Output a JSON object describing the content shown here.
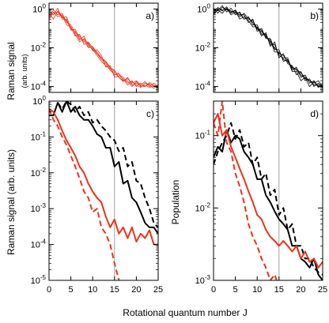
{
  "figure": {
    "xlabel": "Rotational quantum number J",
    "ylabel_top": "Raman signal",
    "ylabel_top_sub": "(arb. units)",
    "ylabel_c": "Raman signal (arb. units)",
    "ylabel_d": "Population"
  },
  "chart_data": [
    {
      "panel": "a)",
      "type": "line",
      "xlim": [
        0,
        25
      ],
      "ylim": [
        5e-05,
        2
      ],
      "yscale": "log",
      "xticks": [],
      "yticks": [
        {
          "v": 1,
          "label": "10^0"
        },
        {
          "v": 0.01,
          "label": "10^-2"
        },
        {
          "v": 0.0001,
          "label": "10^-4"
        }
      ],
      "vline": 15,
      "color": "#e8341c",
      "series": [
        {
          "x": [
            0,
            1,
            2,
            3,
            4,
            5,
            6,
            7,
            8,
            9,
            10,
            11,
            12,
            13,
            14,
            15,
            16,
            17,
            18,
            19,
            20,
            21,
            22,
            23,
            24,
            25
          ],
          "values": [
            0.6,
            0.3,
            0.8,
            0.4,
            0.25,
            0.1,
            0.05,
            0.02,
            0.03,
            0.015,
            0.008,
            0.004,
            0.002,
            0.0012,
            0.0008,
            0.0005,
            0.0003,
            0.0002,
            0.00025,
            0.00015,
            0.0002,
            0.00012,
            0.00018,
            0.0001,
            0.00015,
            0.0001
          ]
        },
        {
          "x": [
            0,
            1,
            2,
            3,
            4,
            5,
            6,
            7,
            8,
            9,
            10,
            11,
            12,
            13,
            14,
            15,
            16,
            17,
            18,
            19,
            20,
            21,
            22,
            23,
            24,
            25
          ],
          "values": [
            0.4,
            0.9,
            0.5,
            0.6,
            0.2,
            0.15,
            0.06,
            0.04,
            0.02,
            0.02,
            0.01,
            0.006,
            0.003,
            0.002,
            0.001,
            0.0006,
            0.0004,
            0.0003,
            0.00015,
            0.0002,
            0.0001,
            0.00015,
            0.0001,
            0.00014,
            0.0001,
            0.00012
          ]
        },
        {
          "x": [
            0,
            1,
            2,
            3,
            4,
            5,
            6,
            7,
            8,
            9,
            10,
            11,
            12,
            13,
            14,
            15,
            16,
            17,
            18,
            19,
            20,
            21,
            22,
            23,
            24,
            25
          ],
          "values": [
            0.8,
            0.5,
            1.1,
            0.3,
            0.3,
            0.08,
            0.09,
            0.03,
            0.025,
            0.01,
            0.012,
            0.005,
            0.0025,
            0.0015,
            0.0007,
            0.0004,
            0.0005,
            0.0002,
            0.0002,
            0.0001,
            0.00018,
            0.0001,
            0.00012,
            9e-05,
            0.00011,
            9e-05
          ]
        },
        {
          "x": [
            0,
            1,
            2,
            3,
            4,
            5,
            6,
            7,
            8,
            9,
            10,
            11,
            12,
            13,
            14,
            15,
            16,
            17,
            18,
            19,
            20,
            21,
            22,
            23,
            24,
            25
          ],
          "values": [
            0.3,
            0.7,
            0.4,
            0.5,
            0.15,
            0.12,
            0.04,
            0.05,
            0.015,
            0.018,
            0.007,
            0.008,
            0.004,
            0.001,
            0.0012,
            0.0003,
            0.00035,
            0.00025,
            0.00012,
            0.00018,
            0.00012,
            9e-05,
            0.00015,
            0.00012,
            8e-05,
            0.00013
          ]
        },
        {
          "x": [
            0,
            1,
            2,
            3,
            4,
            5,
            6,
            7,
            8,
            9,
            10,
            11,
            12,
            13,
            14,
            15,
            16,
            17,
            18,
            19,
            20,
            21,
            22,
            23,
            24,
            25
          ],
          "values": [
            0.5,
            0.6,
            0.7,
            0.35,
            0.4,
            0.1,
            0.07,
            0.025,
            0.04,
            0.012,
            0.009,
            0.005,
            0.003,
            0.0018,
            0.0009,
            0.0007,
            0.0003,
            0.00018,
            0.0003,
            0.00012,
            0.00015,
            0.00011,
            0.0001,
            0.00016,
            0.00012,
            0.0001
          ]
        }
      ]
    },
    {
      "panel": "b)",
      "type": "line",
      "xlim": [
        0,
        25
      ],
      "ylim": [
        5e-05,
        2
      ],
      "yscale": "log",
      "xticks": [],
      "yticks": [
        {
          "v": 1,
          "label": "10^0"
        },
        {
          "v": 0.01,
          "label": "10^-2"
        },
        {
          "v": 0.0001,
          "label": "10^-4"
        }
      ],
      "vline": 15,
      "color": "#000000",
      "series": [
        {
          "x": [
            0,
            1,
            2,
            3,
            4,
            5,
            6,
            7,
            8,
            9,
            10,
            11,
            12,
            13,
            14,
            15,
            16,
            17,
            18,
            19,
            20,
            21,
            22,
            23,
            24,
            25
          ],
          "values": [
            0.7,
            1.2,
            0.8,
            1.3,
            0.6,
            0.9,
            0.4,
            0.6,
            0.3,
            0.25,
            0.1,
            0.08,
            0.04,
            0.02,
            0.01,
            0.005,
            0.004,
            0.002,
            0.001,
            0.0008,
            0.0005,
            0.0003,
            0.0002,
            0.00015,
            0.0002,
            0.0001
          ]
        },
        {
          "x": [
            0,
            1,
            2,
            3,
            4,
            5,
            6,
            7,
            8,
            9,
            10,
            11,
            12,
            13,
            14,
            15,
            16,
            17,
            18,
            19,
            20,
            21,
            22,
            23,
            24,
            25
          ],
          "values": [
            0.9,
            0.8,
            1.5,
            0.7,
            1.1,
            0.5,
            0.7,
            0.3,
            0.4,
            0.15,
            0.15,
            0.05,
            0.05,
            0.015,
            0.015,
            0.004,
            0.003,
            0.003,
            0.0007,
            0.001,
            0.0003,
            0.0004,
            0.00015,
            0.0002,
            0.0001,
            0.00015
          ]
        },
        {
          "x": [
            0,
            1,
            2,
            3,
            4,
            5,
            6,
            7,
            8,
            9,
            10,
            11,
            12,
            13,
            14,
            15,
            16,
            17,
            18,
            19,
            20,
            21,
            22,
            23,
            24,
            25
          ],
          "values": [
            0.5,
            1.0,
            0.9,
            1.0,
            0.8,
            0.6,
            0.5,
            0.5,
            0.2,
            0.3,
            0.07,
            0.1,
            0.03,
            0.03,
            0.008,
            0.008,
            0.002,
            0.0025,
            0.0006,
            0.0006,
            0.0002,
            0.0003,
            0.0001,
            0.00018,
            9e-05,
            0.00012
          ]
        },
        {
          "x": [
            0,
            1,
            2,
            3,
            4,
            5,
            6,
            7,
            8,
            9,
            10,
            11,
            12,
            13,
            14,
            15,
            16,
            17,
            18,
            19,
            20,
            21,
            22,
            23,
            24,
            25
          ],
          "values": [
            1.1,
            0.6,
            1.2,
            0.9,
            0.7,
            0.8,
            0.3,
            0.4,
            0.25,
            0.12,
            0.12,
            0.04,
            0.06,
            0.012,
            0.02,
            0.003,
            0.005,
            0.0015,
            0.0012,
            0.0004,
            0.0006,
            0.0002,
            0.00025,
            0.0001,
            0.00015,
            9e-05
          ]
        },
        {
          "x": [
            0,
            1,
            2,
            3,
            4,
            5,
            6,
            7,
            8,
            9,
            10,
            11,
            12,
            13,
            14,
            15,
            16,
            17,
            18,
            19,
            20,
            21,
            22,
            23,
            24,
            25
          ],
          "values": [
            0.6,
            0.9,
            0.6,
            1.1,
            0.5,
            0.7,
            0.6,
            0.3,
            0.35,
            0.2,
            0.09,
            0.07,
            0.035,
            0.025,
            0.006,
            0.006,
            0.0025,
            0.002,
            0.0009,
            0.0007,
            0.0004,
            0.00025,
            0.0002,
            0.00012,
            0.00012,
            0.00011
          ]
        }
      ]
    },
    {
      "panel": "c)",
      "type": "line",
      "xlim": [
        0,
        25
      ],
      "ylim": [
        1e-05,
        1
      ],
      "yscale": "log",
      "xticks": [
        0,
        5,
        10,
        15,
        20,
        25
      ],
      "yticks": [
        {
          "v": 1,
          "label": "10^0"
        },
        {
          "v": 0.1,
          "label": "10^-1"
        },
        {
          "v": 0.01,
          "label": "10^-2"
        },
        {
          "v": 0.001,
          "label": "10^-3"
        },
        {
          "v": 0.0001,
          "label": "10^-4"
        },
        {
          "v": 1e-05,
          "label": "10^-5"
        }
      ],
      "vline": 15,
      "series": [
        {
          "style": "solid",
          "color": "#000000",
          "x": [
            0,
            1,
            2,
            3,
            4,
            5,
            6,
            7,
            8,
            9,
            10,
            11,
            12,
            13,
            14,
            15,
            16,
            17,
            18,
            19,
            20,
            21,
            22,
            23,
            24,
            25
          ],
          "values": [
            0.4,
            0.4,
            0.9,
            0.5,
            1.0,
            0.5,
            0.7,
            0.4,
            0.3,
            0.3,
            0.2,
            0.12,
            0.1,
            0.05,
            0.05,
            0.015,
            0.02,
            0.005,
            0.006,
            0.002,
            0.0015,
            0.0008,
            0.0004,
            0.0003,
            0.0003,
            0.0002
          ]
        },
        {
          "style": "dashed",
          "color": "#000000",
          "x": [
            2,
            3,
            4,
            5,
            6,
            7,
            8,
            9,
            10,
            11,
            12,
            13,
            14,
            15,
            16,
            17,
            18,
            19,
            20,
            21,
            22,
            23,
            24,
            25
          ],
          "values": [
            0.9,
            0.6,
            1.0,
            0.8,
            0.5,
            0.7,
            0.4,
            0.5,
            0.25,
            0.3,
            0.2,
            0.15,
            0.1,
            0.08,
            0.04,
            0.05,
            0.015,
            0.02,
            0.006,
            0.005,
            0.002,
            0.001,
            0.0004,
            0.0003
          ]
        },
        {
          "style": "solid",
          "color": "#e8341c",
          "x": [
            0,
            1,
            2,
            3,
            4,
            5,
            6,
            7,
            8,
            9,
            10,
            11,
            12,
            13,
            14,
            15,
            16,
            17,
            18,
            19,
            20,
            21,
            22,
            23,
            24,
            25
          ],
          "values": [
            0.6,
            0.5,
            0.3,
            0.15,
            0.08,
            0.05,
            0.03,
            0.015,
            0.01,
            0.005,
            0.003,
            0.002,
            0.0015,
            0.0006,
            0.0003,
            0.0005,
            0.0002,
            0.0003,
            0.00015,
            0.0003,
            0.00012,
            0.0002,
            0.00015,
            0.00025,
            0.0001,
            0.0001
          ]
        },
        {
          "style": "dashed",
          "color": "#e8341c",
          "x": [
            0,
            1,
            2,
            3,
            4,
            5,
            6,
            7,
            8,
            9,
            10,
            11,
            12,
            13,
            14,
            15,
            16
          ],
          "values": [
            0.6,
            0.3,
            0.2,
            0.1,
            0.06,
            0.03,
            0.015,
            0.007,
            0.003,
            0.002,
            0.0008,
            0.001,
            0.0003,
            0.0002,
            0.0001,
            3e-05,
            1e-05
          ]
        }
      ]
    },
    {
      "panel": "d)",
      "type": "line",
      "xlim": [
        0,
        25
      ],
      "ylim": [
        0.001,
        0.3
      ],
      "yscale": "log",
      "xticks": [
        0,
        5,
        10,
        15,
        20,
        25
      ],
      "yticks": [
        {
          "v": 0.1,
          "label": "10^-1"
        },
        {
          "v": 0.01,
          "label": "10^-2"
        },
        {
          "v": 0.001,
          "label": "10^-3"
        }
      ],
      "vline": 15,
      "series": [
        {
          "style": "solid",
          "color": "#000000",
          "x": [
            0,
            1,
            2,
            3,
            4,
            5,
            6,
            7,
            8,
            9,
            10,
            11,
            12,
            13,
            14,
            15,
            16,
            17,
            18,
            19,
            20,
            21,
            22,
            23,
            24,
            25
          ],
          "values": [
            0.05,
            0.07,
            0.06,
            0.12,
            0.08,
            0.1,
            0.09,
            0.06,
            0.05,
            0.04,
            0.025,
            0.025,
            0.015,
            0.012,
            0.009,
            0.007,
            0.006,
            0.005,
            0.003,
            0.003,
            0.002,
            0.0018,
            0.0015,
            0.002,
            0.0012,
            0.001
          ]
        },
        {
          "style": "dashed",
          "color": "#000000",
          "x": [
            0,
            1,
            2,
            3,
            4,
            5,
            6,
            7,
            8,
            9,
            10,
            11,
            12,
            13,
            14,
            15,
            16,
            17,
            18,
            19,
            20,
            21,
            22,
            23,
            24,
            25
          ],
          "values": [
            0.04,
            0.06,
            0.08,
            0.1,
            0.15,
            0.09,
            0.12,
            0.07,
            0.08,
            0.04,
            0.05,
            0.025,
            0.03,
            0.015,
            0.018,
            0.008,
            0.01,
            0.005,
            0.006,
            0.003,
            0.003,
            0.002,
            0.002,
            0.0015,
            0.0013,
            0.0012
          ]
        },
        {
          "style": "solid",
          "color": "#e8341c",
          "x": [
            0,
            1,
            2,
            3,
            4,
            5,
            6,
            7,
            8,
            9,
            10,
            11,
            12,
            13,
            14,
            15,
            16,
            17,
            18,
            19,
            20,
            21,
            22,
            23,
            24,
            25
          ],
          "values": [
            0.15,
            0.2,
            0.1,
            0.12,
            0.07,
            0.05,
            0.035,
            0.025,
            0.017,
            0.012,
            0.008,
            0.007,
            0.005,
            0.004,
            0.0035,
            0.003,
            0.0035,
            0.003,
            0.0025,
            0.003,
            0.002,
            0.0025,
            0.0018,
            0.002,
            0.0015,
            0.0018
          ]
        },
        {
          "style": "dashed",
          "color": "#e8341c",
          "x": [
            0,
            1,
            2,
            3,
            4,
            5,
            6,
            7,
            8,
            9,
            10,
            11,
            12,
            13,
            14,
            15
          ],
          "values": [
            0.15,
            0.1,
            0.3,
            0.08,
            0.06,
            0.03,
            0.02,
            0.012,
            0.006,
            0.004,
            0.003,
            0.002,
            0.0015,
            0.001,
            0.0012,
            0.0008
          ]
        }
      ]
    }
  ]
}
